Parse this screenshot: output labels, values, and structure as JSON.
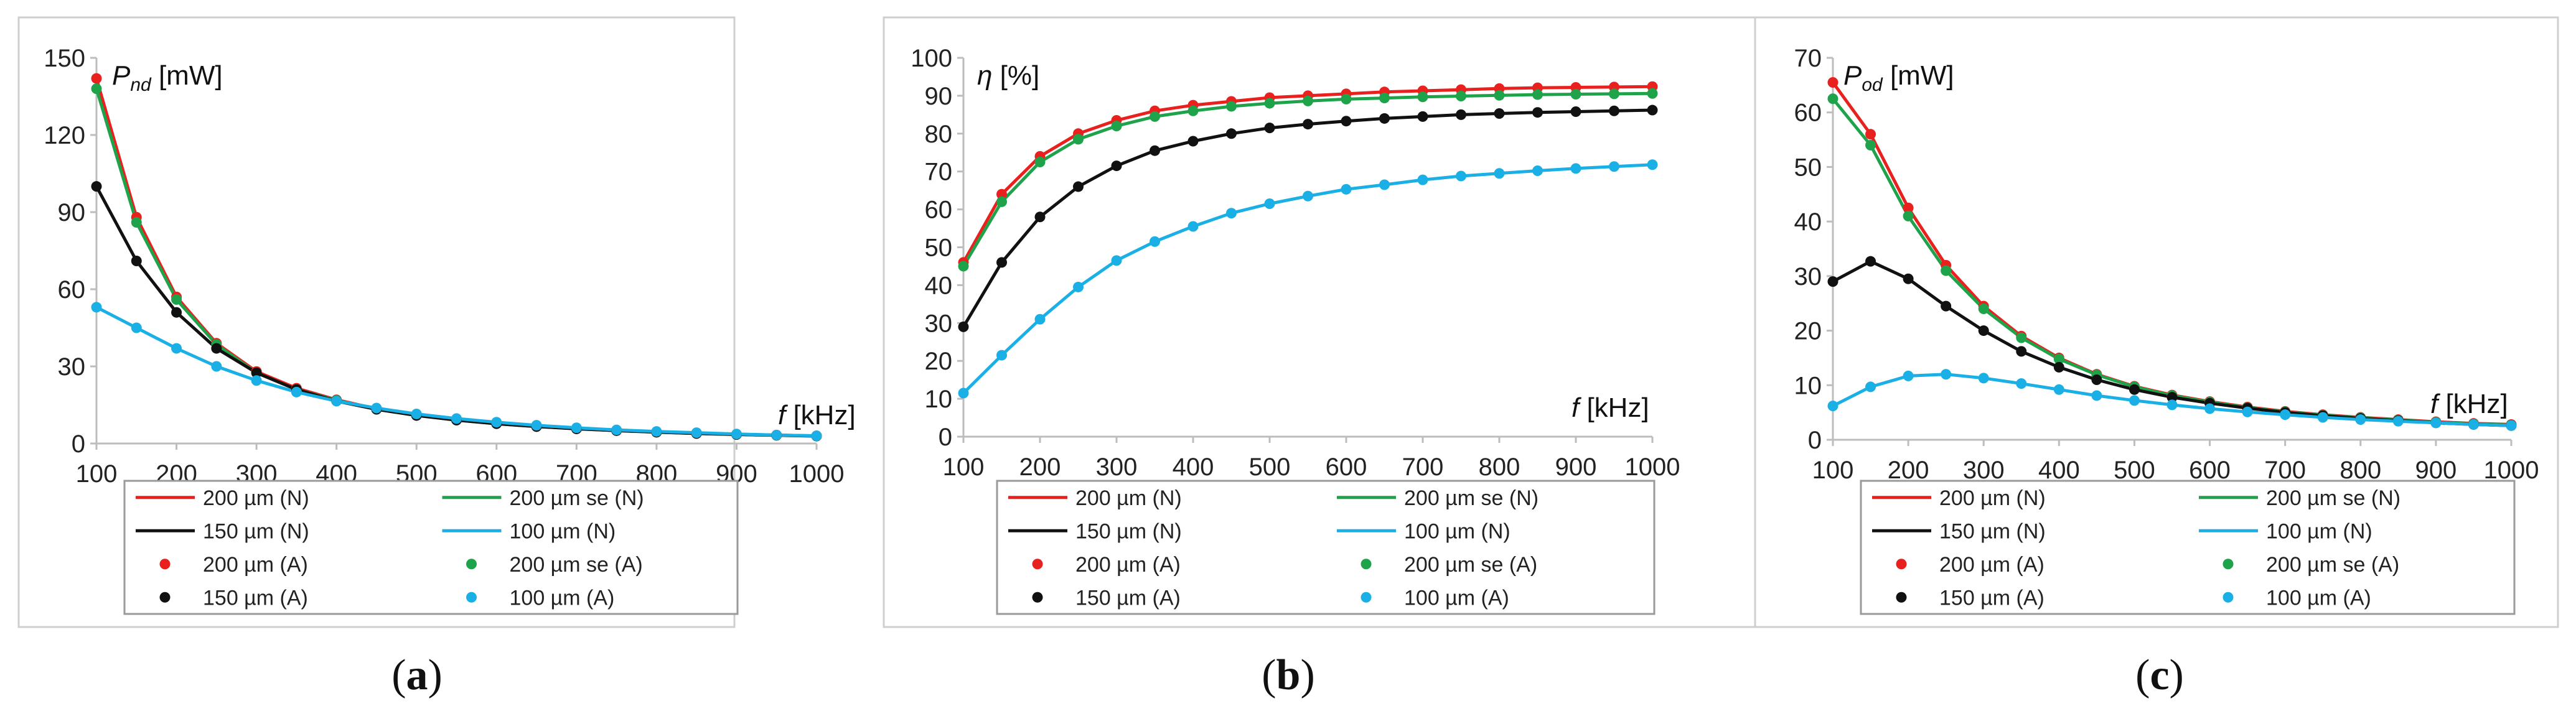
{
  "chart_data": [
    {
      "type": "line",
      "panel": "(a)",
      "caption_open": "(",
      "caption_letter": "a",
      "caption_close": ")",
      "ylabel_main": "P",
      "ylabel_sub": "nd",
      "ylabel_unit": "[mW]",
      "xlabel_main": "f",
      "xlabel_unit": "[kHz]",
      "xlim": [
        100,
        1000
      ],
      "ylim": [
        0,
        150
      ],
      "xticks": [
        100,
        200,
        300,
        400,
        500,
        600,
        700,
        800,
        900,
        1000
      ],
      "yticks": [
        0,
        30,
        60,
        90,
        120,
        150
      ],
      "x": [
        100,
        150,
        200,
        250,
        300,
        350,
        400,
        450,
        500,
        550,
        600,
        650,
        700,
        750,
        800,
        850,
        900,
        950,
        1000
      ],
      "series": [
        {
          "name": "200 µm (N)",
          "kind": "line",
          "color": "#e8201e",
          "values": [
            142,
            88,
            57,
            39,
            28,
            21.5,
            17,
            13.5,
            11,
            9.2,
            7.8,
            6.7,
            5.8,
            5.1,
            4.5,
            4,
            3.6,
            3.3,
            3
          ]
        },
        {
          "name": "200 µm se (N)",
          "kind": "line",
          "color": "#1fa34a",
          "values": [
            138,
            86,
            56,
            38.5,
            27.5,
            21,
            16.8,
            13.3,
            10.9,
            9.1,
            7.7,
            6.6,
            5.7,
            5,
            4.4,
            3.9,
            3.5,
            3.2,
            2.9
          ]
        },
        {
          "name": "150 µm (N)",
          "kind": "line",
          "color": "#111111",
          "values": [
            100,
            71,
            51,
            37,
            27.5,
            21,
            16.5,
            13.3,
            10.9,
            9.1,
            7.7,
            6.6,
            5.7,
            5,
            4.4,
            3.9,
            3.5,
            3.2,
            2.9
          ]
        },
        {
          "name": "100 µm (N)",
          "kind": "line",
          "color": "#1ab0e6",
          "values": [
            53,
            45,
            37,
            30,
            24.5,
            20,
            16.5,
            13.8,
            11.5,
            9.7,
            8.3,
            7.1,
            6.1,
            5.3,
            4.7,
            4.2,
            3.7,
            3.3,
            3
          ]
        },
        {
          "name": "200 µm (A)",
          "kind": "dots",
          "color": "#e8201e",
          "values": [
            142,
            88,
            57,
            39,
            28,
            21.5,
            17,
            13.5,
            11,
            9.2,
            7.8,
            6.7,
            5.8,
            5.1,
            4.5,
            4,
            3.6,
            3.3,
            3
          ]
        },
        {
          "name": "200 µm se (A)",
          "kind": "dots",
          "color": "#1fa34a",
          "values": [
            138,
            86,
            56,
            38.5,
            27.5,
            21,
            16.8,
            13.3,
            10.9,
            9.1,
            7.7,
            6.6,
            5.7,
            5,
            4.4,
            3.9,
            3.5,
            3.2,
            2.9
          ]
        },
        {
          "name": "150 µm (A)",
          "kind": "dots",
          "color": "#111111",
          "values": [
            100,
            71,
            51,
            37,
            27.5,
            21,
            16.5,
            13.3,
            10.9,
            9.1,
            7.7,
            6.6,
            5.7,
            5,
            4.4,
            3.9,
            3.5,
            3.2,
            2.9
          ]
        },
        {
          "name": "100 µm (A)",
          "kind": "dots",
          "color": "#1ab0e6",
          "values": [
            53,
            45,
            37,
            30,
            24.5,
            20,
            16.5,
            13.8,
            11.5,
            9.7,
            8.3,
            7.1,
            6.1,
            5.3,
            4.7,
            4.2,
            3.7,
            3.3,
            3
          ]
        }
      ]
    },
    {
      "type": "line",
      "panel": "(b)",
      "caption_open": "(",
      "caption_letter": "b",
      "caption_close": ")",
      "ylabel_main": "η",
      "ylabel_sub": "",
      "ylabel_unit": "[%]",
      "xlabel_main": "f",
      "xlabel_unit": "[kHz]",
      "xlim": [
        100,
        1000
      ],
      "ylim": [
        0,
        100
      ],
      "xticks": [
        100,
        200,
        300,
        400,
        500,
        600,
        700,
        800,
        900,
        1000
      ],
      "yticks": [
        0,
        10,
        20,
        30,
        40,
        50,
        60,
        70,
        80,
        90,
        100
      ],
      "x": [
        100,
        150,
        200,
        250,
        300,
        350,
        400,
        450,
        500,
        550,
        600,
        650,
        700,
        750,
        800,
        850,
        900,
        950,
        1000
      ],
      "series": [
        {
          "name": "200 µm (N)",
          "kind": "line",
          "color": "#e8201e",
          "values": [
            46,
            64,
            74,
            80,
            83.5,
            86,
            87.5,
            88.5,
            89.5,
            90,
            90.5,
            91,
            91.3,
            91.6,
            91.9,
            92.1,
            92.2,
            92.3,
            92.4
          ]
        },
        {
          "name": "200 µm se (N)",
          "kind": "line",
          "color": "#1fa34a",
          "values": [
            45,
            62,
            72.5,
            78.5,
            82,
            84.5,
            86,
            87.2,
            88,
            88.6,
            89.1,
            89.4,
            89.7,
            89.9,
            90.1,
            90.3,
            90.4,
            90.5,
            90.6
          ]
        },
        {
          "name": "150 µm (N)",
          "kind": "line",
          "color": "#111111",
          "values": [
            29,
            46,
            58,
            66,
            71.5,
            75.5,
            78,
            80,
            81.5,
            82.5,
            83.3,
            84,
            84.5,
            85,
            85.3,
            85.6,
            85.8,
            86,
            86.2
          ]
        },
        {
          "name": "100 µm (N)",
          "kind": "line",
          "color": "#1ab0e6",
          "values": [
            11.5,
            21.5,
            31,
            39.5,
            46.5,
            51.5,
            55.5,
            59,
            61.5,
            63.5,
            65.3,
            66.5,
            67.8,
            68.8,
            69.5,
            70.2,
            70.8,
            71.3,
            71.8
          ]
        },
        {
          "name": "200 µm (A)",
          "kind": "dots",
          "color": "#e8201e",
          "values": [
            46,
            64,
            74,
            80,
            83.5,
            86,
            87.5,
            88.5,
            89.5,
            90,
            90.5,
            91,
            91.3,
            91.6,
            91.9,
            92.1,
            92.2,
            92.3,
            92.4
          ]
        },
        {
          "name": "200 µm se (A)",
          "kind": "dots",
          "color": "#1fa34a",
          "values": [
            45,
            62,
            72.5,
            78.5,
            82,
            84.5,
            86,
            87.2,
            88,
            88.6,
            89.1,
            89.4,
            89.7,
            89.9,
            90.1,
            90.3,
            90.4,
            90.5,
            90.6
          ]
        },
        {
          "name": "150 µm (A)",
          "kind": "dots",
          "color": "#111111",
          "values": [
            29,
            46,
            58,
            66,
            71.5,
            75.5,
            78,
            80,
            81.5,
            82.5,
            83.3,
            84,
            84.5,
            85,
            85.3,
            85.6,
            85.8,
            86,
            86.2
          ]
        },
        {
          "name": "100 µm (A)",
          "kind": "dots",
          "color": "#1ab0e6",
          "values": [
            11.5,
            21.5,
            31,
            39.5,
            46.5,
            51.5,
            55.5,
            59,
            61.5,
            63.5,
            65.3,
            66.5,
            67.8,
            68.8,
            69.5,
            70.2,
            70.8,
            71.3,
            71.8
          ]
        }
      ]
    },
    {
      "type": "line",
      "panel": "(c)",
      "caption_open": "(",
      "caption_letter": "c",
      "caption_close": ")",
      "ylabel_main": "P",
      "ylabel_sub": "od",
      "ylabel_unit": "[mW]",
      "xlabel_main": "f",
      "xlabel_unit": "[kHz]",
      "xlim": [
        100,
        1000
      ],
      "ylim": [
        0,
        70
      ],
      "xticks": [
        100,
        200,
        300,
        400,
        500,
        600,
        700,
        800,
        900,
        1000
      ],
      "yticks": [
        0,
        10,
        20,
        30,
        40,
        50,
        60,
        70
      ],
      "x": [
        100,
        150,
        200,
        250,
        300,
        350,
        400,
        450,
        500,
        550,
        600,
        650,
        700,
        750,
        800,
        850,
        900,
        950,
        1000
      ],
      "series": [
        {
          "name": "200 µm (N)",
          "kind": "line",
          "color": "#e8201e",
          "values": [
            65.5,
            56,
            42.5,
            32,
            24.5,
            19,
            15,
            12,
            9.8,
            8.2,
            7,
            6,
            5.2,
            4.6,
            4.1,
            3.7,
            3.3,
            3,
            2.8
          ]
        },
        {
          "name": "200 µm se (N)",
          "kind": "line",
          "color": "#1fa34a",
          "values": [
            62.5,
            54,
            41,
            31,
            24,
            18.7,
            14.8,
            11.9,
            9.7,
            8.1,
            6.9,
            5.9,
            5.1,
            4.5,
            4,
            3.6,
            3.2,
            2.9,
            2.7
          ]
        },
        {
          "name": "150 µm (N)",
          "kind": "line",
          "color": "#111111",
          "values": [
            29,
            32.7,
            29.5,
            24.5,
            20,
            16.2,
            13.3,
            11,
            9.2,
            7.8,
            6.7,
            5.8,
            5,
            4.4,
            3.9,
            3.5,
            3.1,
            2.8,
            2.6
          ]
        },
        {
          "name": "100 µm (N)",
          "kind": "line",
          "color": "#1ab0e6",
          "values": [
            6.2,
            9.7,
            11.7,
            12,
            11.3,
            10.3,
            9.2,
            8.1,
            7.2,
            6.4,
            5.7,
            5.1,
            4.6,
            4.1,
            3.7,
            3.4,
            3.1,
            2.8,
            2.6
          ]
        },
        {
          "name": "200 µm (A)",
          "kind": "dots",
          "color": "#e8201e",
          "values": [
            65.5,
            56,
            42.5,
            32,
            24.5,
            19,
            15,
            12,
            9.8,
            8.2,
            7,
            6,
            5.2,
            4.6,
            4.1,
            3.7,
            3.3,
            3,
            2.8
          ]
        },
        {
          "name": "200 µm se (A)",
          "kind": "dots",
          "color": "#1fa34a",
          "values": [
            62.5,
            54,
            41,
            31,
            24,
            18.7,
            14.8,
            11.9,
            9.7,
            8.1,
            6.9,
            5.9,
            5.1,
            4.5,
            4,
            3.6,
            3.2,
            2.9,
            2.7
          ]
        },
        {
          "name": "150 µm (A)",
          "kind": "dots",
          "color": "#111111",
          "values": [
            29,
            32.7,
            29.5,
            24.5,
            20,
            16.2,
            13.3,
            11,
            9.2,
            7.8,
            6.7,
            5.8,
            5,
            4.4,
            3.9,
            3.5,
            3.1,
            2.8,
            2.6
          ]
        },
        {
          "name": "100 µm (A)",
          "kind": "dots",
          "color": "#1ab0e6",
          "values": [
            6.2,
            9.7,
            11.7,
            12,
            11.3,
            10.3,
            9.2,
            8.1,
            7.2,
            6.4,
            5.7,
            5.1,
            4.6,
            4.1,
            3.7,
            3.4,
            3.1,
            2.8,
            2.6
          ]
        }
      ]
    }
  ]
}
